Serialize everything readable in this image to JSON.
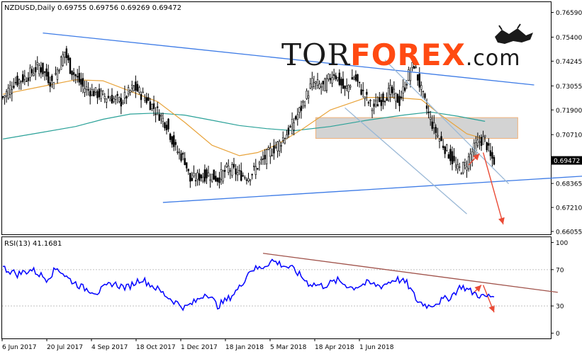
{
  "header": {
    "main_info": "NZDUSD,Daily  0.69755 0.69756 0.69269 0.69472",
    "rsi_info": "RSI(13) 41.1681"
  },
  "watermark": {
    "part1": "TOR",
    "part2": "FOREX",
    "part3": ".com",
    "color_dark": "#1a1a1a",
    "color_accent": "#ff4a12"
  },
  "chart_data": [
    {
      "type": "candlestick",
      "symbol": "NZDUSD",
      "timeframe": "Daily",
      "ohlc_header": [
        0.69755,
        0.69756,
        0.69269,
        0.69472
      ],
      "ylim": [
        0.6595,
        0.7705
      ],
      "y_ticks": [
        "0.76590",
        "0.75400",
        "0.74245",
        "0.73055",
        "0.71900",
        "0.70710",
        "0.69472",
        "0.68365",
        "0.67210",
        "0.66055"
      ],
      "current_price": "0.69472",
      "x_tick_labels": [
        "6 Jun 2017",
        "20 Jul 2017",
        "4 Sep 2017",
        "18 Oct 2017",
        "1 Dec 2017",
        "18 Jan 2018",
        "5 Mar 2018",
        "18 Apr 2018",
        "1 Jun 2018"
      ],
      "price_path": [
        [
          0,
          0.725
        ],
        [
          6,
          0.732
        ],
        [
          13,
          0.735
        ],
        [
          20,
          0.74
        ],
        [
          27,
          0.732
        ],
        [
          34,
          0.747
        ],
        [
          37,
          0.739
        ],
        [
          44,
          0.73
        ],
        [
          51,
          0.727
        ],
        [
          58,
          0.725
        ],
        [
          65,
          0.723
        ],
        [
          72,
          0.73
        ],
        [
          79,
          0.724
        ],
        [
          85,
          0.718
        ],
        [
          90,
          0.712
        ],
        [
          95,
          0.7
        ],
        [
          100,
          0.695
        ],
        [
          103,
          0.685
        ],
        [
          108,
          0.687
        ],
        [
          113,
          0.688
        ],
        [
          118,
          0.686
        ],
        [
          124,
          0.691
        ],
        [
          130,
          0.688
        ],
        [
          135,
          0.687
        ],
        [
          140,
          0.692
        ],
        [
          146,
          0.698
        ],
        [
          152,
          0.703
        ],
        [
          158,
          0.71
        ],
        [
          164,
          0.72
        ],
        [
          170,
          0.732
        ],
        [
          176,
          0.73
        ],
        [
          182,
          0.737
        ],
        [
          188,
          0.728
        ],
        [
          193,
          0.735
        ],
        [
          198,
          0.727
        ],
        [
          203,
          0.72
        ],
        [
          208,
          0.724
        ],
        [
          213,
          0.728
        ],
        [
          218,
          0.723
        ],
        [
          223,
          0.736
        ],
        [
          226,
          0.741
        ],
        [
          230,
          0.728
        ],
        [
          235,
          0.714
        ],
        [
          240,
          0.705
        ],
        [
          245,
          0.698
        ],
        [
          250,
          0.69
        ],
        [
          254,
          0.692
        ],
        [
          258,
          0.699
        ],
        [
          262,
          0.704
        ],
        [
          265,
          0.705
        ],
        [
          268,
          0.696
        ],
        [
          270,
          0.6947
        ]
      ],
      "ma_fast": [
        [
          0,
          0.7265
        ],
        [
          20,
          0.73
        ],
        [
          40,
          0.7335
        ],
        [
          55,
          0.733
        ],
        [
          70,
          0.728
        ],
        [
          85,
          0.723
        ],
        [
          100,
          0.713
        ],
        [
          115,
          0.702
        ],
        [
          130,
          0.697
        ],
        [
          140,
          0.6985
        ],
        [
          150,
          0.702
        ],
        [
          165,
          0.71
        ],
        [
          180,
          0.719
        ],
        [
          200,
          0.725
        ],
        [
          215,
          0.725
        ],
        [
          230,
          0.724
        ],
        [
          240,
          0.717
        ],
        [
          255,
          0.7075
        ],
        [
          265,
          0.705
        ]
      ],
      "ma_slow": [
        [
          0,
          0.705
        ],
        [
          20,
          0.708
        ],
        [
          40,
          0.711
        ],
        [
          55,
          0.7145
        ],
        [
          70,
          0.717
        ],
        [
          85,
          0.7175
        ],
        [
          100,
          0.7165
        ],
        [
          115,
          0.714
        ],
        [
          130,
          0.7115
        ],
        [
          145,
          0.71
        ],
        [
          160,
          0.709
        ],
        [
          180,
          0.711
        ],
        [
          200,
          0.714
        ],
        [
          220,
          0.7165
        ],
        [
          235,
          0.718
        ],
        [
          250,
          0.716
        ],
        [
          265,
          0.7135
        ]
      ],
      "trendlines": [
        {
          "name": "upper-resistance",
          "color": "#3d7be6",
          "from": [
            22,
            0.756
          ],
          "to": [
            292,
            0.731
          ]
        },
        {
          "name": "lower-support",
          "color": "#3d7be6",
          "from": [
            88,
            0.6745
          ],
          "to": [
            325,
            0.6875
          ]
        },
        {
          "name": "channel-upper",
          "color": "#9ab8d6",
          "from": [
            210,
            0.743
          ],
          "to": [
            278,
            0.6835
          ]
        },
        {
          "name": "channel-lower",
          "color": "#9ab8d6",
          "from": [
            188,
            0.72
          ],
          "to": [
            255,
            0.669
          ]
        }
      ],
      "resistance_zone": {
        "x_from": 172,
        "x_to": 283,
        "y_low": 0.7053,
        "y_high": 0.7153,
        "fill": "#d3d3d3",
        "edge": "#f0b27a"
      },
      "projection_arrows": [
        {
          "from": [
            256,
            0.6925
          ],
          "to": [
            262,
            0.698
          ]
        },
        {
          "from": [
            264,
            0.6985
          ],
          "to": [
            275,
            0.664
          ]
        }
      ],
      "colors": {
        "candles": "#000000",
        "ma_fast": "#e8a33a",
        "ma_slow": "#2aa198",
        "trendline": "#3d7be6",
        "arrow": "#ea4a35"
      }
    },
    {
      "type": "line",
      "indicator": "RSI",
      "period": 13,
      "current_value": 41.1681,
      "ylim": [
        -5,
        105
      ],
      "y_ticks": [
        100,
        70,
        30,
        0
      ],
      "levels": [
        70,
        30
      ],
      "series": [
        [
          0,
          72
        ],
        [
          8,
          65
        ],
        [
          16,
          70
        ],
        [
          24,
          60
        ],
        [
          30,
          72
        ],
        [
          36,
          60
        ],
        [
          44,
          50
        ],
        [
          52,
          45
        ],
        [
          60,
          55
        ],
        [
          68,
          50
        ],
        [
          76,
          60
        ],
        [
          84,
          50
        ],
        [
          92,
          38
        ],
        [
          100,
          28
        ],
        [
          106,
          35
        ],
        [
          112,
          45
        ],
        [
          118,
          30
        ],
        [
          124,
          38
        ],
        [
          130,
          50
        ],
        [
          136,
          70
        ],
        [
          142,
          72
        ],
        [
          148,
          80
        ],
        [
          154,
          75
        ],
        [
          160,
          70
        ],
        [
          168,
          55
        ],
        [
          176,
          52
        ],
        [
          184,
          58
        ],
        [
          192,
          50
        ],
        [
          200,
          55
        ],
        [
          208,
          52
        ],
        [
          216,
          60
        ],
        [
          222,
          55
        ],
        [
          228,
          35
        ],
        [
          234,
          30
        ],
        [
          240,
          35
        ],
        [
          246,
          40
        ],
        [
          252,
          52
        ],
        [
          258,
          45
        ],
        [
          264,
          40
        ],
        [
          270,
          41
        ]
      ],
      "trendline": {
        "color": "#a0524a",
        "from": [
          143,
          88
        ],
        "to": [
          305,
          45
        ]
      },
      "projection_arrows": [
        {
          "from": [
            258,
            43
          ],
          "to": [
            263,
            53
          ]
        },
        {
          "from": [
            264,
            53
          ],
          "to": [
            270,
            23
          ]
        }
      ],
      "colors": {
        "line": "#0000ff",
        "arrow": "#ea4a35"
      }
    }
  ]
}
